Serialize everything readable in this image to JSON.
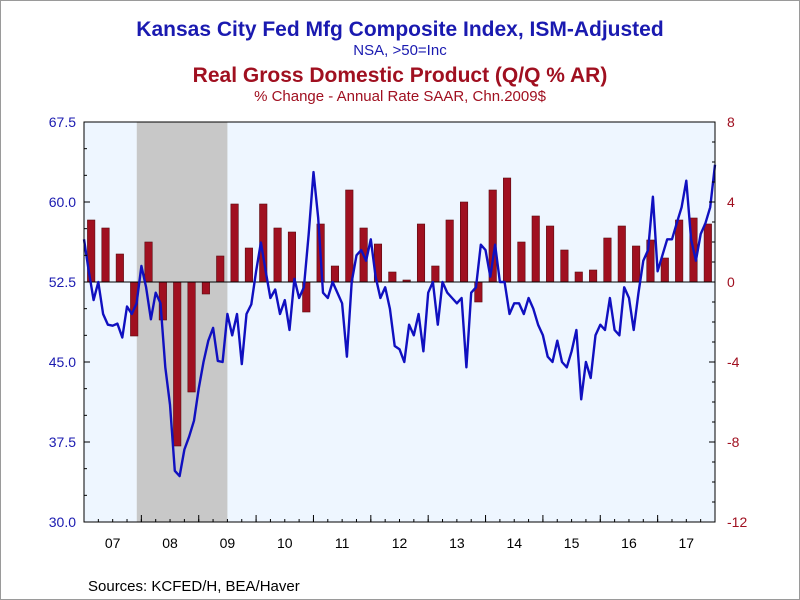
{
  "title_left": "Kansas City Fed Mfg Composite Index, ISM-Adjusted",
  "subtitle_left": "NSA, >50=Inc",
  "title_right": "Real Gross Domestic Product (Q/Q % AR)",
  "subtitle_right": "% Change - Annual Rate     SAAR, Chn.2009$",
  "sources": "Sources:  KCFED/H, BEA/Haver",
  "colors": {
    "line": "#1010c0",
    "bars": "#a01020",
    "recession": "#c8c8c8",
    "plot_bg": "#eef6ff",
    "left_axis": "#1a1ab0",
    "right_axis": "#a01020"
  },
  "chart_data": {
    "type": "bar+line",
    "x_ticks": [
      "07",
      "08",
      "09",
      "10",
      "11",
      "12",
      "13",
      "14",
      "15",
      "16",
      "17"
    ],
    "x_range": [
      2007.0,
      2018.0
    ],
    "left_axis": {
      "ticks": [
        "67.5",
        "60.0",
        "52.5",
        "45.0",
        "37.5",
        "30.0"
      ],
      "range": [
        30.0,
        67.5
      ]
    },
    "right_axis": {
      "ticks": [
        "8",
        "4",
        "0",
        "-4",
        "-8",
        "-12"
      ],
      "range": [
        -12,
        8
      ]
    },
    "recession": [
      2007.92,
      2009.5
    ],
    "gdp_quarterly": [
      {
        "x": 2007.0,
        "y": 3.1
      },
      {
        "x": 2007.25,
        "y": 2.7
      },
      {
        "x": 2007.5,
        "y": 1.4
      },
      {
        "x": 2007.75,
        "y": -2.7
      },
      {
        "x": 2008.0,
        "y": 2.0
      },
      {
        "x": 2008.25,
        "y": -1.9
      },
      {
        "x": 2008.5,
        "y": -8.2
      },
      {
        "x": 2008.75,
        "y": -5.5
      },
      {
        "x": 2009.0,
        "y": -0.6
      },
      {
        "x": 2009.25,
        "y": 1.3
      },
      {
        "x": 2009.5,
        "y": 3.9
      },
      {
        "x": 2009.75,
        "y": 1.7
      },
      {
        "x": 2010.0,
        "y": 3.9
      },
      {
        "x": 2010.25,
        "y": 2.7
      },
      {
        "x": 2010.5,
        "y": 2.5
      },
      {
        "x": 2010.75,
        "y": -1.5
      },
      {
        "x": 2011.0,
        "y": 2.9
      },
      {
        "x": 2011.25,
        "y": 0.8
      },
      {
        "x": 2011.5,
        "y": 4.6
      },
      {
        "x": 2011.75,
        "y": 2.7
      },
      {
        "x": 2012.0,
        "y": 1.9
      },
      {
        "x": 2012.25,
        "y": 0.5
      },
      {
        "x": 2012.5,
        "y": 0.1
      },
      {
        "x": 2012.75,
        "y": 2.9
      },
      {
        "x": 2013.0,
        "y": 0.8
      },
      {
        "x": 2013.25,
        "y": 3.1
      },
      {
        "x": 2013.5,
        "y": 4.0
      },
      {
        "x": 2013.75,
        "y": -1.0
      },
      {
        "x": 2014.0,
        "y": 4.6
      },
      {
        "x": 2014.25,
        "y": 5.2
      },
      {
        "x": 2014.5,
        "y": 2.0
      },
      {
        "x": 2014.75,
        "y": 3.3
      },
      {
        "x": 2015.0,
        "y": 2.8
      },
      {
        "x": 2015.25,
        "y": 1.6
      },
      {
        "x": 2015.5,
        "y": 0.5
      },
      {
        "x": 2015.75,
        "y": 0.6
      },
      {
        "x": 2016.0,
        "y": 2.2
      },
      {
        "x": 2016.25,
        "y": 2.8
      },
      {
        "x": 2016.5,
        "y": 1.8
      },
      {
        "x": 2016.75,
        "y": 2.1
      },
      {
        "x": 2017.0,
        "y": 1.2
      },
      {
        "x": 2017.25,
        "y": 3.1
      },
      {
        "x": 2017.5,
        "y": 3.2
      },
      {
        "x": 2017.75,
        "y": 2.9
      }
    ],
    "kc_fed_monthly": [
      {
        "x": 2007.0,
        "y": 56.5
      },
      {
        "x": 2007.083,
        "y": 53.5
      },
      {
        "x": 2007.167,
        "y": 50.8
      },
      {
        "x": 2007.25,
        "y": 52.5
      },
      {
        "x": 2007.333,
        "y": 49.5
      },
      {
        "x": 2007.417,
        "y": 48.5
      },
      {
        "x": 2007.5,
        "y": 48.4
      },
      {
        "x": 2007.583,
        "y": 48.6
      },
      {
        "x": 2007.667,
        "y": 47.3
      },
      {
        "x": 2007.75,
        "y": 50.2
      },
      {
        "x": 2007.833,
        "y": 49.5
      },
      {
        "x": 2007.917,
        "y": 50.5
      },
      {
        "x": 2008.0,
        "y": 54.0
      },
      {
        "x": 2008.083,
        "y": 52.0
      },
      {
        "x": 2008.167,
        "y": 49.0
      },
      {
        "x": 2008.25,
        "y": 51.5
      },
      {
        "x": 2008.333,
        "y": 50.5
      },
      {
        "x": 2008.417,
        "y": 44.5
      },
      {
        "x": 2008.5,
        "y": 41.0
      },
      {
        "x": 2008.583,
        "y": 34.8
      },
      {
        "x": 2008.667,
        "y": 34.3
      },
      {
        "x": 2008.75,
        "y": 36.8
      },
      {
        "x": 2008.833,
        "y": 38.0
      },
      {
        "x": 2008.917,
        "y": 39.5
      },
      {
        "x": 2009.0,
        "y": 42.5
      },
      {
        "x": 2009.083,
        "y": 45.0
      },
      {
        "x": 2009.167,
        "y": 47.0
      },
      {
        "x": 2009.25,
        "y": 48.2
      },
      {
        "x": 2009.333,
        "y": 45.1
      },
      {
        "x": 2009.417,
        "y": 45.0
      },
      {
        "x": 2009.5,
        "y": 49.5
      },
      {
        "x": 2009.583,
        "y": 47.5
      },
      {
        "x": 2009.667,
        "y": 49.5
      },
      {
        "x": 2009.75,
        "y": 44.8
      },
      {
        "x": 2009.833,
        "y": 49.5
      },
      {
        "x": 2009.917,
        "y": 50.4
      },
      {
        "x": 2010.0,
        "y": 53.5
      },
      {
        "x": 2010.083,
        "y": 56.2
      },
      {
        "x": 2010.167,
        "y": 53.5
      },
      {
        "x": 2010.25,
        "y": 51.0
      },
      {
        "x": 2010.333,
        "y": 51.8
      },
      {
        "x": 2010.417,
        "y": 49.5
      },
      {
        "x": 2010.5,
        "y": 50.8
      },
      {
        "x": 2010.583,
        "y": 48.0
      },
      {
        "x": 2010.667,
        "y": 52.8
      },
      {
        "x": 2010.75,
        "y": 51.0
      },
      {
        "x": 2010.833,
        "y": 52.0
      },
      {
        "x": 2010.917,
        "y": 57.0
      },
      {
        "x": 2011.0,
        "y": 62.8
      },
      {
        "x": 2011.083,
        "y": 58.5
      },
      {
        "x": 2011.167,
        "y": 51.5
      },
      {
        "x": 2011.25,
        "y": 51.0
      },
      {
        "x": 2011.333,
        "y": 52.5
      },
      {
        "x": 2011.417,
        "y": 51.5
      },
      {
        "x": 2011.5,
        "y": 50.5
      },
      {
        "x": 2011.583,
        "y": 45.5
      },
      {
        "x": 2011.667,
        "y": 52.5
      },
      {
        "x": 2011.75,
        "y": 55.0
      },
      {
        "x": 2011.833,
        "y": 55.5
      },
      {
        "x": 2011.917,
        "y": 54.5
      },
      {
        "x": 2012.0,
        "y": 56.5
      },
      {
        "x": 2012.083,
        "y": 53.0
      },
      {
        "x": 2012.167,
        "y": 51.0
      },
      {
        "x": 2012.25,
        "y": 52.0
      },
      {
        "x": 2012.333,
        "y": 50.0
      },
      {
        "x": 2012.417,
        "y": 46.5
      },
      {
        "x": 2012.5,
        "y": 46.2
      },
      {
        "x": 2012.583,
        "y": 45.0
      },
      {
        "x": 2012.667,
        "y": 48.5
      },
      {
        "x": 2012.75,
        "y": 47.5
      },
      {
        "x": 2012.833,
        "y": 49.5
      },
      {
        "x": 2012.917,
        "y": 46.0
      },
      {
        "x": 2013.0,
        "y": 51.5
      },
      {
        "x": 2013.083,
        "y": 52.5
      },
      {
        "x": 2013.167,
        "y": 48.5
      },
      {
        "x": 2013.25,
        "y": 52.5
      },
      {
        "x": 2013.333,
        "y": 51.5
      },
      {
        "x": 2013.417,
        "y": 51.0
      },
      {
        "x": 2013.5,
        "y": 50.5
      },
      {
        "x": 2013.583,
        "y": 51.0
      },
      {
        "x": 2013.667,
        "y": 44.5
      },
      {
        "x": 2013.75,
        "y": 51.5
      },
      {
        "x": 2013.833,
        "y": 52.0
      },
      {
        "x": 2013.917,
        "y": 56.0
      },
      {
        "x": 2014.0,
        "y": 55.5
      },
      {
        "x": 2014.083,
        "y": 53.0
      },
      {
        "x": 2014.167,
        "y": 56.0
      },
      {
        "x": 2014.25,
        "y": 52.5
      },
      {
        "x": 2014.333,
        "y": 52.5
      },
      {
        "x": 2014.417,
        "y": 49.5
      },
      {
        "x": 2014.5,
        "y": 50.5
      },
      {
        "x": 2014.583,
        "y": 50.5
      },
      {
        "x": 2014.667,
        "y": 49.5
      },
      {
        "x": 2014.75,
        "y": 51.0
      },
      {
        "x": 2014.833,
        "y": 50.0
      },
      {
        "x": 2014.917,
        "y": 48.5
      },
      {
        "x": 2015.0,
        "y": 47.5
      },
      {
        "x": 2015.083,
        "y": 45.5
      },
      {
        "x": 2015.167,
        "y": 45.0
      },
      {
        "x": 2015.25,
        "y": 47.0
      },
      {
        "x": 2015.333,
        "y": 45.0
      },
      {
        "x": 2015.417,
        "y": 44.5
      },
      {
        "x": 2015.5,
        "y": 46.0
      },
      {
        "x": 2015.583,
        "y": 48.0
      },
      {
        "x": 2015.667,
        "y": 41.5
      },
      {
        "x": 2015.75,
        "y": 45.0
      },
      {
        "x": 2015.833,
        "y": 43.5
      },
      {
        "x": 2015.917,
        "y": 47.5
      },
      {
        "x": 2016.0,
        "y": 48.5
      },
      {
        "x": 2016.083,
        "y": 48.0
      },
      {
        "x": 2016.167,
        "y": 51.0
      },
      {
        "x": 2016.25,
        "y": 48.0
      },
      {
        "x": 2016.333,
        "y": 47.5
      },
      {
        "x": 2016.417,
        "y": 52.0
      },
      {
        "x": 2016.5,
        "y": 51.0
      },
      {
        "x": 2016.583,
        "y": 48.0
      },
      {
        "x": 2016.667,
        "y": 51.5
      },
      {
        "x": 2016.75,
        "y": 54.5
      },
      {
        "x": 2016.833,
        "y": 55.5
      },
      {
        "x": 2016.917,
        "y": 60.5
      },
      {
        "x": 2017.0,
        "y": 53.5
      },
      {
        "x": 2017.083,
        "y": 55.0
      },
      {
        "x": 2017.167,
        "y": 56.5
      },
      {
        "x": 2017.25,
        "y": 56.5
      },
      {
        "x": 2017.333,
        "y": 58.0
      },
      {
        "x": 2017.417,
        "y": 59.5
      },
      {
        "x": 2017.5,
        "y": 62.0
      },
      {
        "x": 2017.583,
        "y": 56.5
      },
      {
        "x": 2017.667,
        "y": 54.5
      },
      {
        "x": 2017.75,
        "y": 57.0
      },
      {
        "x": 2017.833,
        "y": 58.0
      },
      {
        "x": 2017.917,
        "y": 59.5
      },
      {
        "x": 2018.0,
        "y": 63.5
      }
    ]
  }
}
